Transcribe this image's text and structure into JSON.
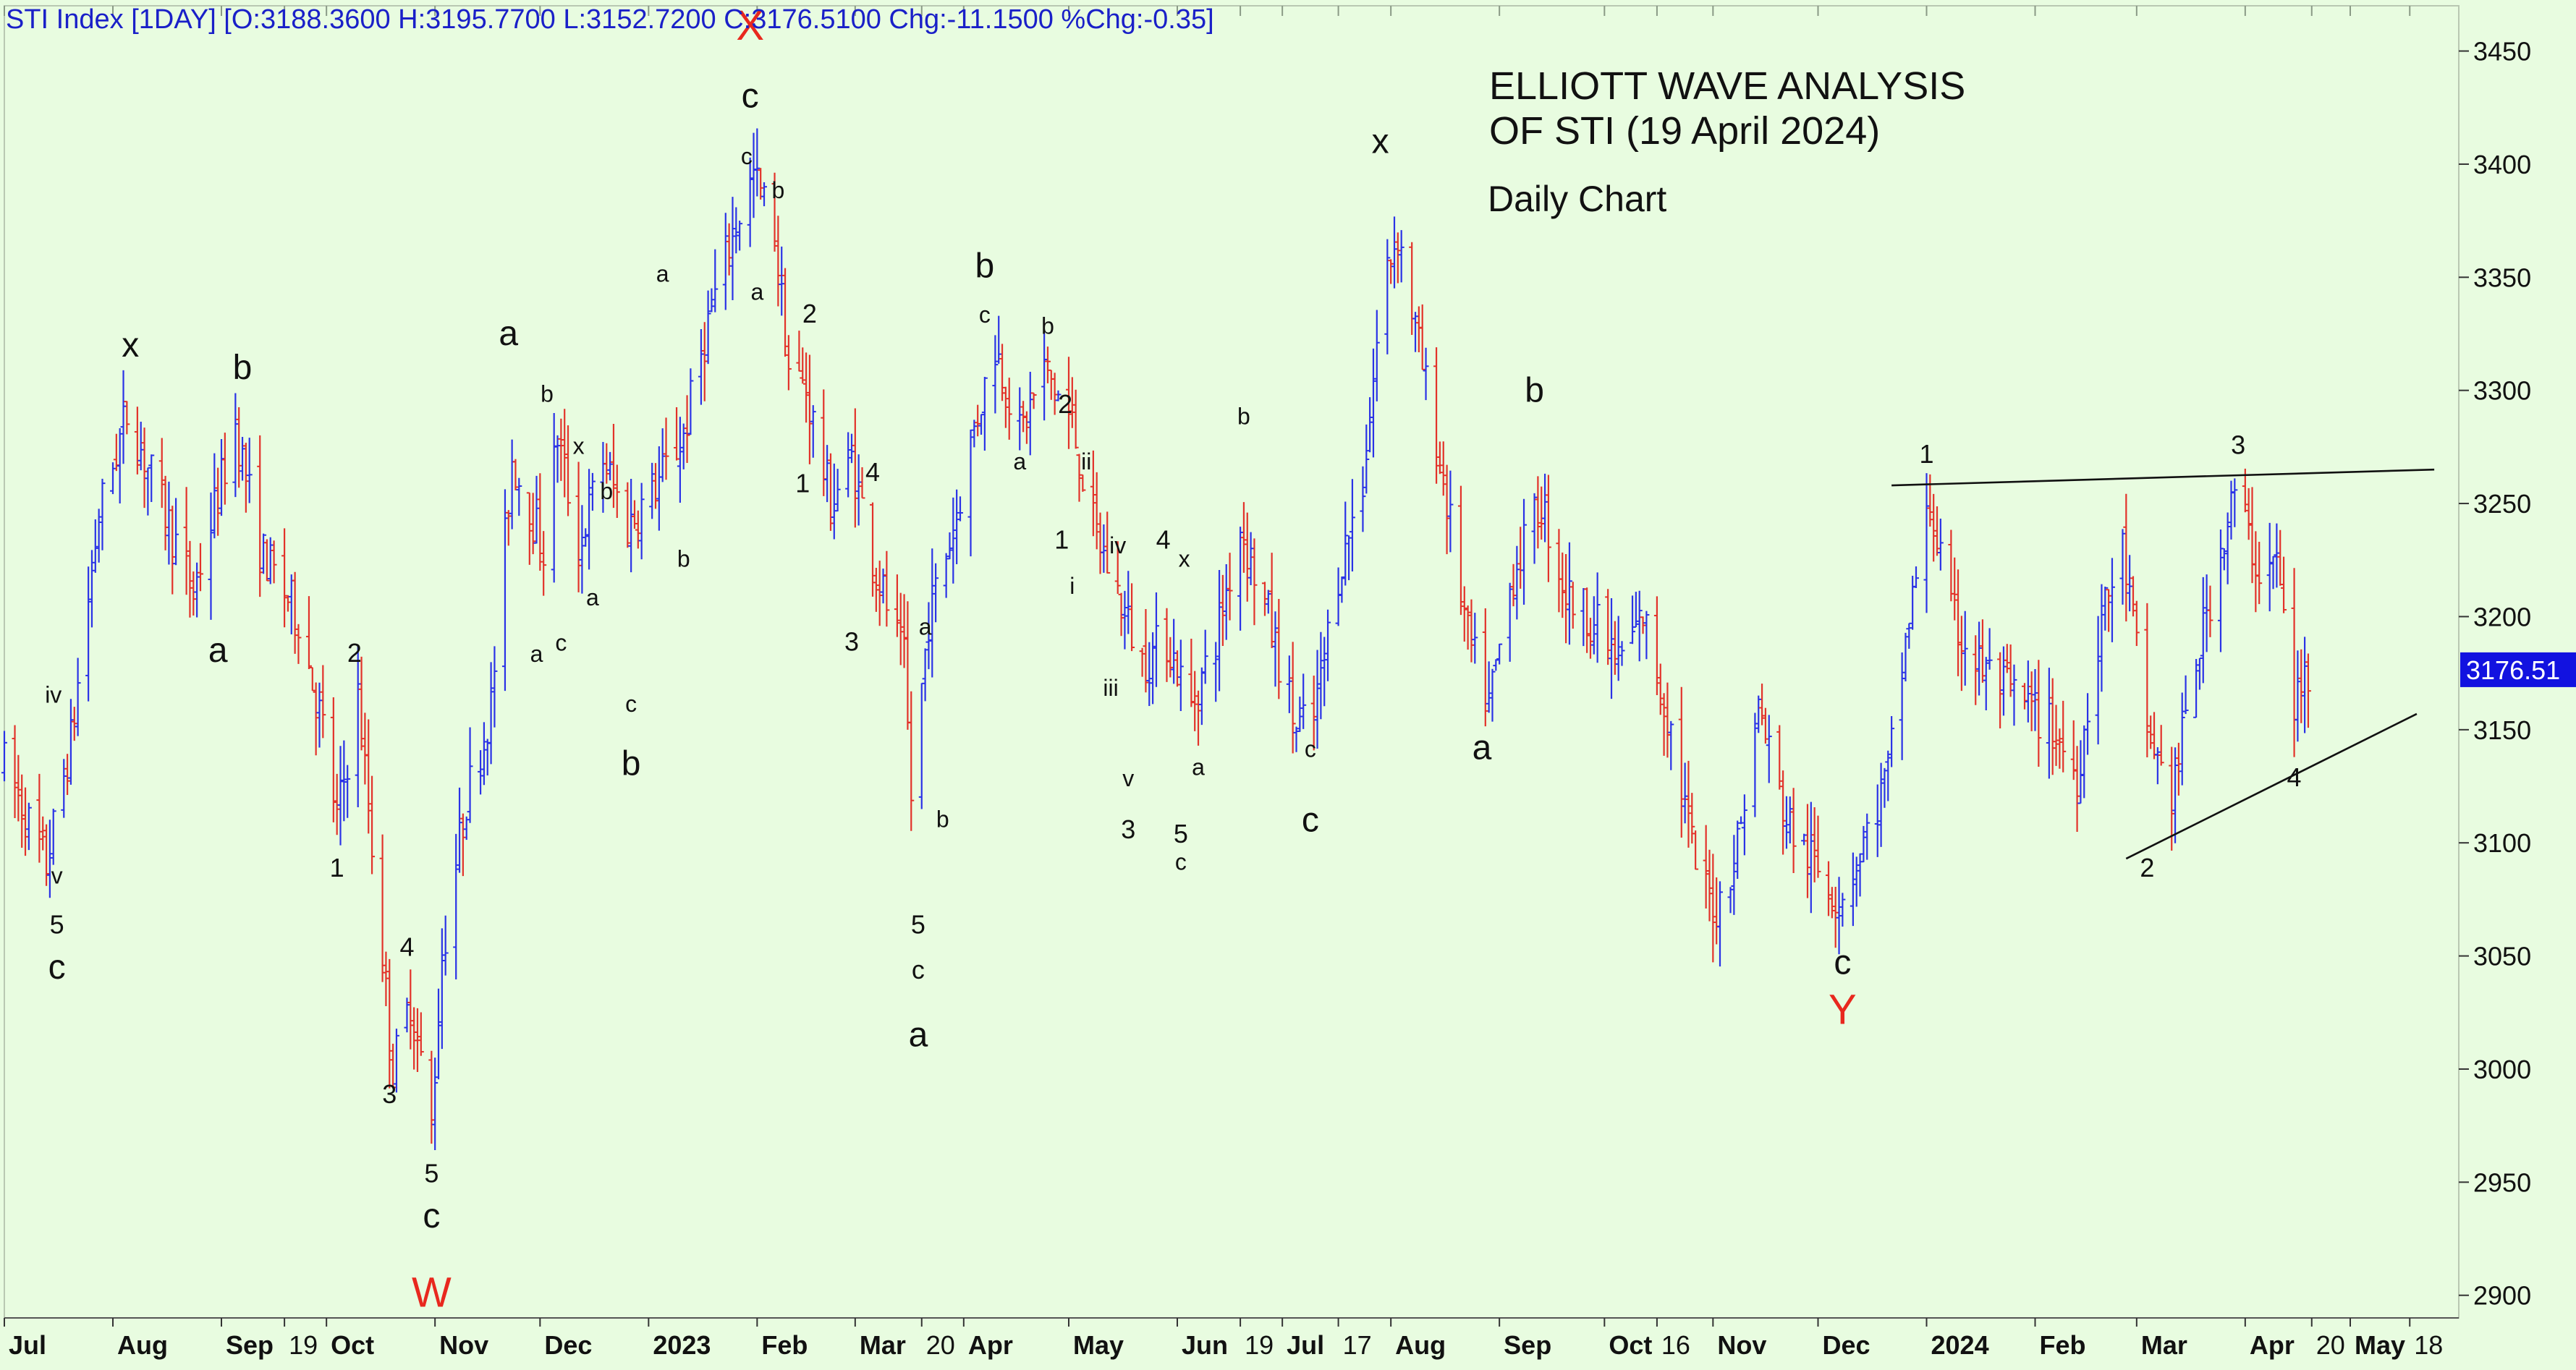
{
  "header": {
    "text": "STI Index [1DAY] [O:3188.3600 H:3195.7700 L:3152.7200 C:3176.5100 Chg:-11.1500 %Chg:-0.35]"
  },
  "title": {
    "line1": "ELLIOTT WAVE ANALYSIS",
    "line2": "OF STI (19 April 2024)",
    "subtitle": "Daily Chart"
  },
  "colors": {
    "background": "#e8fce0",
    "up_bar": "#2a32e6",
    "down_bar": "#e2322a",
    "axis_text": "#111111",
    "price_tag_bg": "#1212e0",
    "price_tag_text": "#ffffff",
    "major_label": "#e8281e"
  },
  "chart_data": {
    "type": "ohlc",
    "title": "ELLIOTT WAVE ANALYSIS OF STI (19 April 2024)",
    "subtitle": "Daily Chart",
    "x_axis": {
      "type": "date",
      "range": [
        "2022-07-01",
        "2024-06-01"
      ],
      "ticks": [
        {
          "label": "Jul",
          "date": "2022-07-01"
        },
        {
          "label": "Aug",
          "date": "2022-08-01"
        },
        {
          "label": "Sep",
          "date": "2022-09-01"
        },
        {
          "label": "19",
          "date": "2022-09-19"
        },
        {
          "label": "Oct",
          "date": "2022-10-01"
        },
        {
          "label": "Nov",
          "date": "2022-11-01"
        },
        {
          "label": "Dec",
          "date": "2022-12-01"
        },
        {
          "label": "2023",
          "date": "2023-01-01"
        },
        {
          "label": "Feb",
          "date": "2023-02-01"
        },
        {
          "label": "Mar",
          "date": "2023-03-01"
        },
        {
          "label": "20",
          "date": "2023-03-20"
        },
        {
          "label": "Apr",
          "date": "2023-04-01"
        },
        {
          "label": "May",
          "date": "2023-05-01"
        },
        {
          "label": "Jun",
          "date": "2023-06-01"
        },
        {
          "label": "19",
          "date": "2023-06-19"
        },
        {
          "label": "Jul",
          "date": "2023-07-01"
        },
        {
          "label": "17",
          "date": "2023-07-17"
        },
        {
          "label": "Aug",
          "date": "2023-08-01"
        },
        {
          "label": "Sep",
          "date": "2023-09-01"
        },
        {
          "label": "Oct",
          "date": "2023-10-01"
        },
        {
          "label": "16",
          "date": "2023-10-16"
        },
        {
          "label": "Nov",
          "date": "2023-11-01"
        },
        {
          "label": "Dec",
          "date": "2023-12-01"
        },
        {
          "label": "2024",
          "date": "2024-01-01"
        },
        {
          "label": "Feb",
          "date": "2024-02-01"
        },
        {
          "label": "Mar",
          "date": "2024-03-01"
        },
        {
          "label": "Apr",
          "date": "2024-04-01"
        },
        {
          "label": "20",
          "date": "2024-04-20"
        },
        {
          "label": "May",
          "date": "2024-05-01"
        },
        {
          "label": "18",
          "date": "2024-05-18"
        }
      ]
    },
    "y_axis": {
      "range": [
        2890,
        3470
      ],
      "ticks": [
        2900,
        2950,
        3000,
        3050,
        3100,
        3150,
        3200,
        3250,
        3300,
        3350,
        3400,
        3450
      ],
      "position": "right"
    },
    "last_price": {
      "label": "3176.51",
      "value": 3176.51
    },
    "price_path": [
      [
        "2022-07-01",
        3135
      ],
      [
        "2022-07-13",
        3090
      ],
      [
        "2022-07-20",
        3145
      ],
      [
        "2022-07-28",
        3245
      ],
      [
        "2022-08-05",
        3290
      ],
      [
        "2022-08-15",
        3250
      ],
      [
        "2022-08-24",
        3210
      ],
      [
        "2022-09-05",
        3285
      ],
      [
        "2022-09-12",
        3230
      ],
      [
        "2022-09-23",
        3200
      ],
      [
        "2022-09-30",
        3150
      ],
      [
        "2022-10-04",
        3110
      ],
      [
        "2022-10-10",
        3165
      ],
      [
        "2022-10-20",
        3000
      ],
      [
        "2022-10-25",
        3030
      ],
      [
        "2022-10-31",
        2975
      ],
      [
        "2022-11-03",
        3050
      ],
      [
        "2022-11-10",
        3120
      ],
      [
        "2022-11-17",
        3160
      ],
      [
        "2022-11-23",
        3270
      ],
      [
        "2022-12-02",
        3230
      ],
      [
        "2022-12-06",
        3280
      ],
      [
        "2022-12-12",
        3230
      ],
      [
        "2022-12-19",
        3270
      ],
      [
        "2022-12-26",
        3240
      ],
      [
        "2023-01-04",
        3260
      ],
      [
        "2023-01-11",
        3280
      ],
      [
        "2023-01-18",
        3330
      ],
      [
        "2023-01-25",
        3370
      ],
      [
        "2023-01-31",
        3395
      ],
      [
        "2023-02-06",
        3370
      ],
      [
        "2023-02-10",
        3310
      ],
      [
        "2023-02-15",
        3300
      ],
      [
        "2023-02-22",
        3250
      ],
      [
        "2023-02-28",
        3270
      ],
      [
        "2023-03-07",
        3220
      ],
      [
        "2023-03-15",
        3180
      ],
      [
        "2023-03-17",
        3120
      ],
      [
        "2023-03-22",
        3200
      ],
      [
        "2023-03-29",
        3240
      ],
      [
        "2023-04-05",
        3290
      ],
      [
        "2023-04-10",
        3320
      ],
      [
        "2023-04-17",
        3280
      ],
      [
        "2023-04-24",
        3310
      ],
      [
        "2023-05-02",
        3285
      ],
      [
        "2023-05-08",
        3240
      ],
      [
        "2023-05-15",
        3210
      ],
      [
        "2023-05-22",
        3180
      ],
      [
        "2023-05-29",
        3190
      ],
      [
        "2023-06-05",
        3160
      ],
      [
        "2023-06-12",
        3190
      ],
      [
        "2023-06-19",
        3240
      ],
      [
        "2023-06-27",
        3200
      ],
      [
        "2023-07-05",
        3150
      ],
      [
        "2023-07-10",
        3155
      ],
      [
        "2023-07-17",
        3220
      ],
      [
        "2023-07-24",
        3260
      ],
      [
        "2023-07-30",
        3350
      ],
      [
        "2023-08-03",
        3370
      ],
      [
        "2023-08-10",
        3310
      ],
      [
        "2023-08-16",
        3260
      ],
      [
        "2023-08-23",
        3190
      ],
      [
        "2023-08-29",
        3160
      ],
      [
        "2023-09-05",
        3220
      ],
      [
        "2023-09-13",
        3250
      ],
      [
        "2023-09-20",
        3210
      ],
      [
        "2023-09-27",
        3200
      ],
      [
        "2023-10-05",
        3180
      ],
      [
        "2023-10-12",
        3200
      ],
      [
        "2023-10-20",
        3150
      ],
      [
        "2023-10-27",
        3090
      ],
      [
        "2023-11-02",
        3070
      ],
      [
        "2023-11-08",
        3100
      ],
      [
        "2023-11-14",
        3160
      ],
      [
        "2023-11-22",
        3110
      ],
      [
        "2023-11-30",
        3090
      ],
      [
        "2023-12-07",
        3075
      ],
      [
        "2023-12-14",
        3100
      ],
      [
        "2023-12-21",
        3130
      ],
      [
        "2023-12-27",
        3200
      ],
      [
        "2024-01-02",
        3250
      ],
      [
        "2024-01-08",
        3200
      ],
      [
        "2024-01-15",
        3180
      ],
      [
        "2024-01-22",
        3170
      ],
      [
        "2024-01-30",
        3160
      ],
      [
        "2024-02-06",
        3150
      ],
      [
        "2024-02-13",
        3130
      ],
      [
        "2024-02-20",
        3200
      ],
      [
        "2024-02-26",
        3230
      ],
      [
        "2024-03-04",
        3150
      ],
      [
        "2024-03-11",
        3120
      ],
      [
        "2024-03-18",
        3180
      ],
      [
        "2024-03-25",
        3230
      ],
      [
        "2024-03-29",
        3255
      ],
      [
        "2024-04-05",
        3220
      ],
      [
        "2024-04-10",
        3225
      ],
      [
        "2024-04-15",
        3160
      ],
      [
        "2024-04-19",
        3176.51
      ]
    ],
    "trendlines": [
      {
        "from": [
          "2023-12-22",
          3258
        ],
        "to": [
          "2024-05-25",
          3265
        ]
      },
      {
        "from": [
          "2024-02-27",
          3093
        ],
        "to": [
          "2024-05-20",
          3157
        ]
      }
    ],
    "wave_labels": [
      {
        "text": "iv",
        "date": "2022-07-15",
        "price": 3162,
        "size": "s"
      },
      {
        "text": "v",
        "date": "2022-07-16",
        "price": 3082,
        "size": "s"
      },
      {
        "text": "5",
        "date": "2022-07-16",
        "price": 3060,
        "size": "m"
      },
      {
        "text": "c",
        "date": "2022-07-16",
        "price": 3040,
        "size": "l"
      },
      {
        "text": "x",
        "date": "2022-08-06",
        "price": 3315,
        "size": "l"
      },
      {
        "text": "a",
        "date": "2022-08-31",
        "price": 3180,
        "size": "l"
      },
      {
        "text": "b",
        "date": "2022-09-07",
        "price": 3305,
        "size": "l"
      },
      {
        "text": "1",
        "date": "2022-10-04",
        "price": 3085,
        "size": "m"
      },
      {
        "text": "2",
        "date": "2022-10-09",
        "price": 3180,
        "size": "m"
      },
      {
        "text": "4",
        "date": "2022-10-24",
        "price": 3050,
        "size": "m"
      },
      {
        "text": "3",
        "date": "2022-10-19",
        "price": 2985,
        "size": "m"
      },
      {
        "text": "5",
        "date": "2022-10-31",
        "price": 2950,
        "size": "m"
      },
      {
        "text": "c",
        "date": "2022-10-31",
        "price": 2930,
        "size": "l"
      },
      {
        "text": "W",
        "date": "2022-10-31",
        "price": 2895,
        "size": "xl",
        "color": "major"
      },
      {
        "text": "a",
        "date": "2022-11-22",
        "price": 3320,
        "size": "l"
      },
      {
        "text": "a",
        "date": "2022-11-30",
        "price": 3180,
        "size": "s"
      },
      {
        "text": "b",
        "date": "2022-12-03",
        "price": 3295,
        "size": "s"
      },
      {
        "text": "c",
        "date": "2022-12-07",
        "price": 3185,
        "size": "s"
      },
      {
        "text": "x",
        "date": "2022-12-12",
        "price": 3272,
        "size": "s"
      },
      {
        "text": "a",
        "date": "2022-12-16",
        "price": 3205,
        "size": "s"
      },
      {
        "text": "b",
        "date": "2022-12-20",
        "price": 3252,
        "size": "s"
      },
      {
        "text": "c",
        "date": "2022-12-27",
        "price": 3158,
        "size": "s"
      },
      {
        "text": "b",
        "date": "2022-12-27",
        "price": 3130,
        "size": "l"
      },
      {
        "text": "a",
        "date": "2023-01-05",
        "price": 3348,
        "size": "s"
      },
      {
        "text": "b",
        "date": "2023-01-11",
        "price": 3222,
        "size": "s"
      },
      {
        "text": "X",
        "date": "2023-01-30",
        "price": 3455,
        "size": "xl",
        "color": "major"
      },
      {
        "text": "c",
        "date": "2023-01-30",
        "price": 3425,
        "size": "l"
      },
      {
        "text": "c",
        "date": "2023-01-29",
        "price": 3400,
        "size": "s"
      },
      {
        "text": "a",
        "date": "2023-02-01",
        "price": 3340,
        "size": "s"
      },
      {
        "text": "b",
        "date": "2023-02-07",
        "price": 3385,
        "size": "s"
      },
      {
        "text": "2",
        "date": "2023-02-16",
        "price": 3330,
        "size": "m"
      },
      {
        "text": "1",
        "date": "2023-02-14",
        "price": 3255,
        "size": "m"
      },
      {
        "text": "4",
        "date": "2023-03-06",
        "price": 3260,
        "size": "m"
      },
      {
        "text": "3",
        "date": "2023-02-28",
        "price": 3185,
        "size": "m"
      },
      {
        "text": "a",
        "date": "2023-03-21",
        "price": 3192,
        "size": "s"
      },
      {
        "text": "b",
        "date": "2023-03-26",
        "price": 3107,
        "size": "s"
      },
      {
        "text": "5",
        "date": "2023-03-19",
        "price": 3060,
        "size": "m"
      },
      {
        "text": "c",
        "date": "2023-03-19",
        "price": 3040,
        "size": "m"
      },
      {
        "text": "a",
        "date": "2023-03-19",
        "price": 3010,
        "size": "l"
      },
      {
        "text": "b",
        "date": "2023-04-07",
        "price": 3350,
        "size": "l"
      },
      {
        "text": "c",
        "date": "2023-04-07",
        "price": 3330,
        "size": "s"
      },
      {
        "text": "a",
        "date": "2023-04-17",
        "price": 3265,
        "size": "s"
      },
      {
        "text": "b",
        "date": "2023-04-25",
        "price": 3325,
        "size": "s"
      },
      {
        "text": "2",
        "date": "2023-04-30",
        "price": 3290,
        "size": "m"
      },
      {
        "text": "ii",
        "date": "2023-05-06",
        "price": 3265,
        "size": "s"
      },
      {
        "text": "1",
        "date": "2023-04-29",
        "price": 3230,
        "size": "m"
      },
      {
        "text": "i",
        "date": "2023-05-02",
        "price": 3210,
        "size": "s"
      },
      {
        "text": "iv",
        "date": "2023-05-15",
        "price": 3228,
        "size": "s"
      },
      {
        "text": "4",
        "date": "2023-05-28",
        "price": 3230,
        "size": "m"
      },
      {
        "text": "x",
        "date": "2023-06-03",
        "price": 3222,
        "size": "s"
      },
      {
        "text": "iii",
        "date": "2023-05-13",
        "price": 3165,
        "size": "s"
      },
      {
        "text": "a",
        "date": "2023-06-07",
        "price": 3130,
        "size": "s"
      },
      {
        "text": "v",
        "date": "2023-05-18",
        "price": 3125,
        "size": "s"
      },
      {
        "text": "3",
        "date": "2023-05-18",
        "price": 3102,
        "size": "m"
      },
      {
        "text": "5",
        "date": "2023-06-02",
        "price": 3100,
        "size": "m"
      },
      {
        "text": "c",
        "date": "2023-06-02",
        "price": 3088,
        "size": "s"
      },
      {
        "text": "b",
        "date": "2023-06-20",
        "price": 3285,
        "size": "s"
      },
      {
        "text": "c",
        "date": "2023-07-09",
        "price": 3138,
        "size": "s"
      },
      {
        "text": "c",
        "date": "2023-07-09",
        "price": 3105,
        "size": "l"
      },
      {
        "text": "x",
        "date": "2023-07-29",
        "price": 3405,
        "size": "l"
      },
      {
        "text": "b",
        "date": "2023-09-11",
        "price": 3295,
        "size": "l"
      },
      {
        "text": "a",
        "date": "2023-08-27",
        "price": 3137,
        "size": "l"
      },
      {
        "text": "1",
        "date": "2024-01-01",
        "price": 3268,
        "size": "m"
      },
      {
        "text": "3",
        "date": "2024-03-30",
        "price": 3272,
        "size": "m"
      },
      {
        "text": "2",
        "date": "2024-03-04",
        "price": 3085,
        "size": "m"
      },
      {
        "text": "4",
        "date": "2024-04-15",
        "price": 3125,
        "size": "m"
      },
      {
        "text": "c",
        "date": "2023-12-08",
        "price": 3042,
        "size": "l"
      },
      {
        "text": "Y",
        "date": "2023-12-08",
        "price": 3020,
        "size": "xl",
        "color": "major"
      }
    ]
  }
}
